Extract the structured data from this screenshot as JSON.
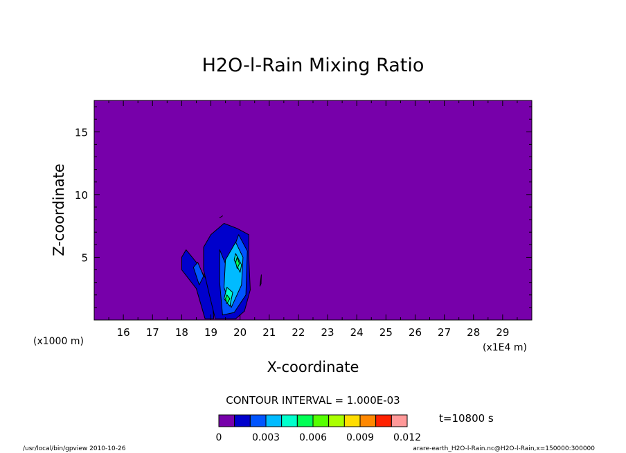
{
  "chart_data": {
    "type": "heatmap",
    "title": "H2O-l-Rain Mixing Ratio",
    "xlabel": "X-coordinate",
    "ylabel": "Z-coordinate",
    "x_unit_left": "(x1000 m)",
    "x_unit_right": "(x1E4 m)",
    "x_tick_labels": [
      "16",
      "17",
      "18",
      "19",
      "20",
      "21",
      "22",
      "23",
      "24",
      "25",
      "26",
      "27",
      "28",
      "29"
    ],
    "y_tick_labels": [
      "5",
      "10",
      "15"
    ],
    "xlim": [
      15.0,
      30.0
    ],
    "ylim": [
      0.0,
      17.5
    ],
    "contour_interval_text": "CONTOUR INTERVAL = 1.000E-03",
    "time_text": "t=10800 s",
    "colorbar": {
      "colors": [
        "#7700aa",
        "#0000cc",
        "#0055ff",
        "#00bbff",
        "#00ffcc",
        "#00ff55",
        "#55ff00",
        "#aaff00",
        "#ffdd00",
        "#ff8800",
        "#ff2200",
        "#ff9999"
      ],
      "tick_labels": [
        "0",
        "0.003",
        "0.006",
        "0.009",
        "0.012"
      ],
      "ticks": [
        0,
        0.003,
        0.006,
        0.009,
        0.012
      ],
      "range": [
        0,
        0.012
      ]
    },
    "contours": [
      {
        "level": 0.001,
        "x": [
          18.0,
          18.15,
          18.5,
          18.85,
          19.05,
          19.1,
          18.8,
          18.5,
          18.0
        ],
        "y": [
          5.0,
          5.6,
          4.6,
          3.2,
          1.6,
          0.1,
          0.1,
          2.5,
          4.0
        ]
      },
      {
        "level": 0.001,
        "x": [
          18.75,
          19.0,
          19.45,
          19.9,
          20.3,
          20.3,
          20.35,
          20.15,
          19.85,
          19.5,
          19.15,
          18.95,
          18.75
        ],
        "y": [
          5.8,
          6.8,
          7.7,
          7.3,
          6.8,
          5.0,
          2.4,
          0.7,
          0.1,
          0.1,
          0.1,
          2.0,
          4.0
        ]
      },
      {
        "level": 0.001,
        "x": [
          20.68,
          20.73,
          20.72,
          20.68
        ],
        "y": [
          2.7,
          3.6,
          2.9,
          2.7
        ]
      },
      {
        "level": 0.001,
        "x": [
          19.3,
          19.4,
          19.3
        ],
        "y": [
          8.15,
          8.3,
          8.15
        ]
      },
      {
        "level": 0.002,
        "x": [
          19.3,
          19.55,
          19.95,
          20.25,
          20.2,
          19.8,
          19.4,
          19.3
        ],
        "y": [
          5.6,
          4.2,
          6.8,
          5.5,
          2.0,
          0.6,
          0.4,
          3.0
        ]
      },
      {
        "level": 0.002,
        "x": [
          18.4,
          18.55,
          18.75,
          18.6,
          18.4
        ],
        "y": [
          4.2,
          4.6,
          3.5,
          2.8,
          4.2
        ]
      },
      {
        "level": 0.003,
        "x": [
          19.5,
          19.85,
          20.1,
          20.05,
          19.7,
          19.45,
          19.5
        ],
        "y": [
          4.8,
          6.2,
          5.0,
          2.8,
          1.0,
          2.6,
          4.8
        ]
      },
      {
        "level": 0.004,
        "x": [
          19.85,
          20.05,
          20.0,
          19.8
        ],
        "y": [
          5.3,
          4.4,
          3.8,
          4.8
        ]
      },
      {
        "level": 0.004,
        "x": [
          19.55,
          19.75,
          19.65,
          19.45,
          19.55
        ],
        "y": [
          2.6,
          2.2,
          1.1,
          1.7,
          2.6
        ]
      },
      {
        "level": 0.005,
        "x": [
          19.9,
          19.98,
          19.9,
          19.85
        ],
        "y": [
          5.0,
          4.5,
          4.1,
          4.6
        ]
      },
      {
        "level": 0.005,
        "x": [
          19.55,
          19.65,
          19.55,
          19.5
        ],
        "y": [
          2.0,
          1.7,
          1.3,
          1.7
        ]
      }
    ]
  },
  "footer": {
    "left": "/usr/local/bin/gpview  2010-10-26",
    "right": "arare-earth_H2O-l-Rain.nc@H2O-l-Rain,x=150000:300000"
  }
}
